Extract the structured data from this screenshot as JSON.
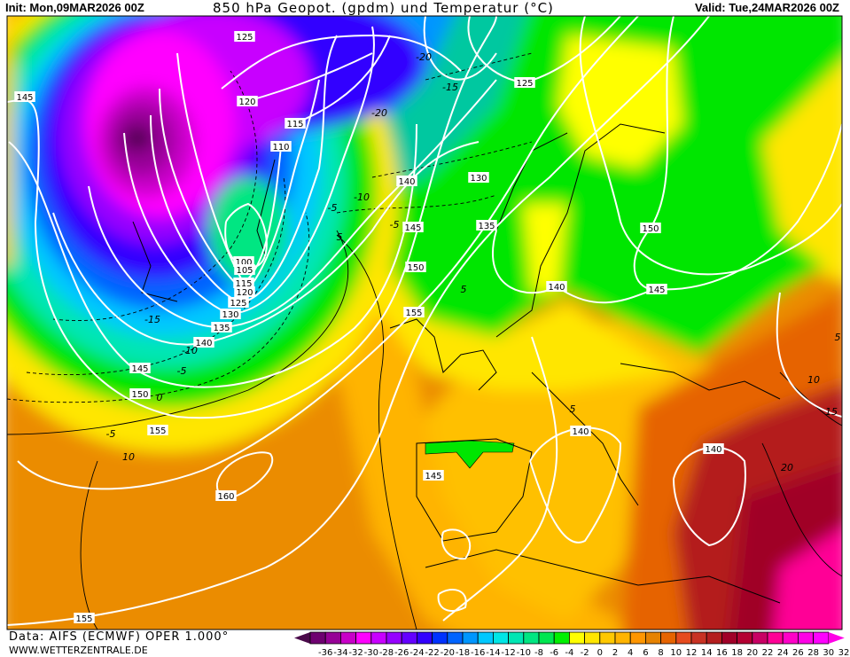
{
  "header": {
    "init": "Init: Mon,09MAR2026 00Z",
    "title": "850 hPa Geopot. (gpdm) und Temperatur (°C)",
    "valid": "Valid: Tue,24MAR2026 00Z"
  },
  "footer": {
    "source": "Data: AIFS (ECMWF) OPER 1.000°",
    "website": "WWW.WETTERZENTRALE.DE"
  },
  "map": {
    "geopotential_labels": [
      "125",
      "120",
      "115",
      "110",
      "100",
      "105",
      "115",
      "120",
      "125",
      "130",
      "135",
      "140",
      "145",
      "150",
      "155",
      "160",
      "155",
      "145",
      "125",
      "130",
      "135",
      "140",
      "145",
      "150",
      "155",
      "150",
      "145",
      "140",
      "140",
      "140",
      "145"
    ],
    "temperature_labels": [
      "-5",
      "5",
      "-10",
      "-15",
      "-10",
      "-5",
      "0",
      "-5",
      "10",
      "-15",
      "-20",
      "-20",
      "5",
      "5",
      "10",
      "15",
      "20",
      "5",
      "-5"
    ]
  },
  "colorbar": {
    "labels": [
      "-36",
      "-34",
      "-32",
      "-30",
      "-28",
      "-26",
      "-24",
      "-22",
      "-20",
      "-18",
      "-16",
      "-14",
      "-12",
      "-10",
      "-8",
      "-6",
      "-4",
      "-2",
      "0",
      "2",
      "4",
      "6",
      "8",
      "10",
      "12",
      "14",
      "16",
      "18",
      "20",
      "22",
      "24",
      "26",
      "28",
      "30",
      "32"
    ],
    "under_color": "#4a0a4a",
    "over_color": "#ff00e6",
    "colors": [
      "#6e0070",
      "#960096",
      "#c800c8",
      "#ff00ff",
      "#c800ff",
      "#9600ff",
      "#6400ff",
      "#3200ff",
      "#0032ff",
      "#0064ff",
      "#0096ff",
      "#00c8ff",
      "#00e6e6",
      "#00e6b4",
      "#00e682",
      "#00e650",
      "#00f000",
      "#ffff00",
      "#ffe600",
      "#ffc800",
      "#ffb400",
      "#ff9600",
      "#e68200",
      "#e66400",
      "#e64b1e",
      "#c83223",
      "#b41e1e",
      "#a00028",
      "#b40032",
      "#c80064",
      "#ff0096",
      "#ff00c8",
      "#ff00e6",
      "#ff00ff"
    ]
  }
}
